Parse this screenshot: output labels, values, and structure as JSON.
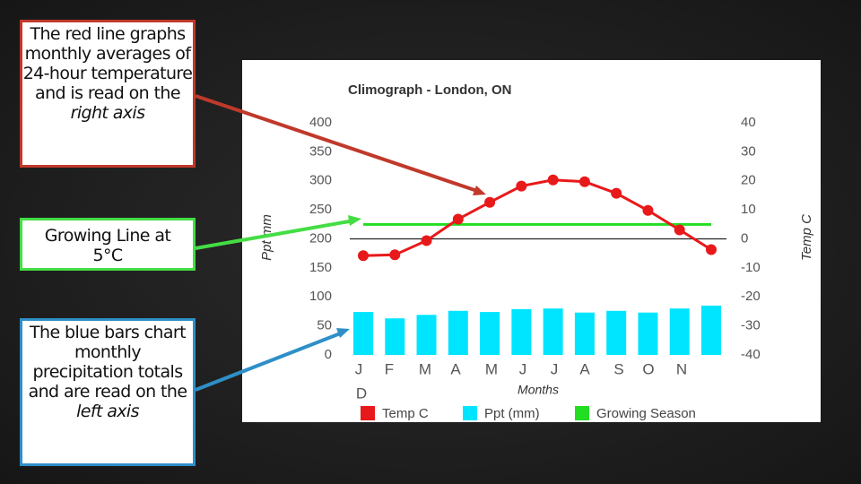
{
  "chart_data": {
    "type": "climograph",
    "title": "Climograph - London, ON",
    "y_label": "Ppt mm",
    "y2_label": "Temp C",
    "x_label": "Months",
    "categories": [
      "J",
      "F",
      "M",
      "A",
      "M",
      "J",
      "J",
      "A",
      "S",
      "O",
      "N",
      "D"
    ],
    "ylim": [
      0,
      400
    ],
    "yticks": [
      0,
      50,
      100,
      150,
      200,
      250,
      300,
      350,
      400
    ],
    "y2lim": [
      -40,
      40
    ],
    "y2ticks": [
      -40,
      -30,
      -20,
      -10,
      0,
      10,
      20,
      30,
      40
    ],
    "series": [
      {
        "name": "Temp C",
        "color": "#e8191a",
        "type": "line",
        "axis": "y2",
        "values": [
          -5.8,
          -5.5,
          -0.6,
          6.8,
          12.6,
          18.2,
          20.3,
          19.7,
          15.7,
          9.8,
          3.1,
          -3.7
        ]
      },
      {
        "name": "Ppt (mm)",
        "color": "#00e5ff",
        "type": "bar",
        "values": [
          74,
          63,
          69,
          76,
          74,
          79,
          80,
          73,
          76,
          73,
          80,
          85
        ]
      },
      {
        "name": "Growing Season",
        "color": "#22dd22",
        "type": "level",
        "axis": "y2",
        "values": [
          5,
          5,
          5,
          5,
          5,
          5,
          5,
          5,
          5,
          5,
          5,
          5
        ]
      }
    ],
    "annotations": [
      {
        "text": "The red line graphs monthly averages of 24-hour temperature and is read on the",
        "emphasis": "right axis",
        "color": "#c0392b"
      },
      {
        "text": "Growing Line at 5°C",
        "color": "#44dd44"
      },
      {
        "text": "The blue bars chart monthly precipitation totals and are read on the",
        "emphasis": "left axis",
        "color": "#2e8fc8"
      }
    ]
  }
}
